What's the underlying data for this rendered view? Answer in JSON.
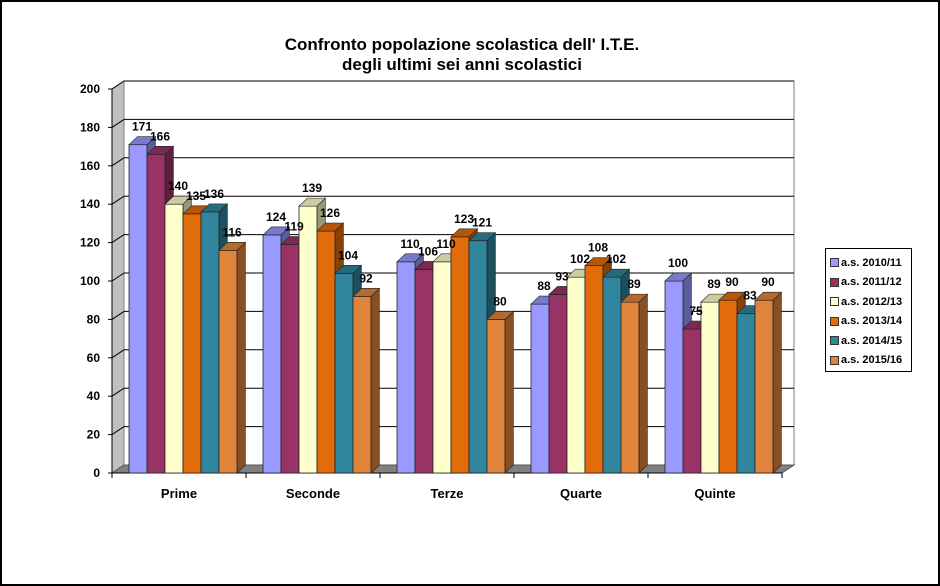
{
  "chart_data": {
    "type": "bar",
    "title": "Confronto popolazione scolastica dell' I.T.E.",
    "subtitle": "degli ultimi sei anni scolastici",
    "categories": [
      "Prime",
      "Seconde",
      "Terze",
      "Quarte",
      "Quinte"
    ],
    "series": [
      {
        "name": "a.s. 2010/11",
        "color": "#9999ff",
        "values": [
          171,
          124,
          110,
          88,
          100
        ]
      },
      {
        "name": "a.s. 2011/12",
        "color": "#993366",
        "values": [
          166,
          119,
          106,
          93,
          75
        ]
      },
      {
        "name": "a.s. 2012/13",
        "color": "#ffffcc",
        "values": [
          140,
          139,
          110,
          102,
          89
        ]
      },
      {
        "name": "a.s. 2013/14",
        "color": "#e36c0a",
        "values": [
          135,
          126,
          123,
          108,
          90
        ]
      },
      {
        "name": "a.s. 2014/15",
        "color": "#31859c",
        "values": [
          136,
          104,
          121,
          102,
          83
        ]
      },
      {
        "name": "a.s. 2015/16",
        "color": "#e0843c",
        "values": [
          116,
          92,
          80,
          89,
          90
        ]
      }
    ],
    "yticks": [
      0,
      20,
      40,
      60,
      80,
      100,
      120,
      140,
      160,
      180,
      200
    ],
    "ylim": [
      0,
      200
    ],
    "grid": true,
    "legend": "right",
    "style": "3d-clustered-bar"
  }
}
